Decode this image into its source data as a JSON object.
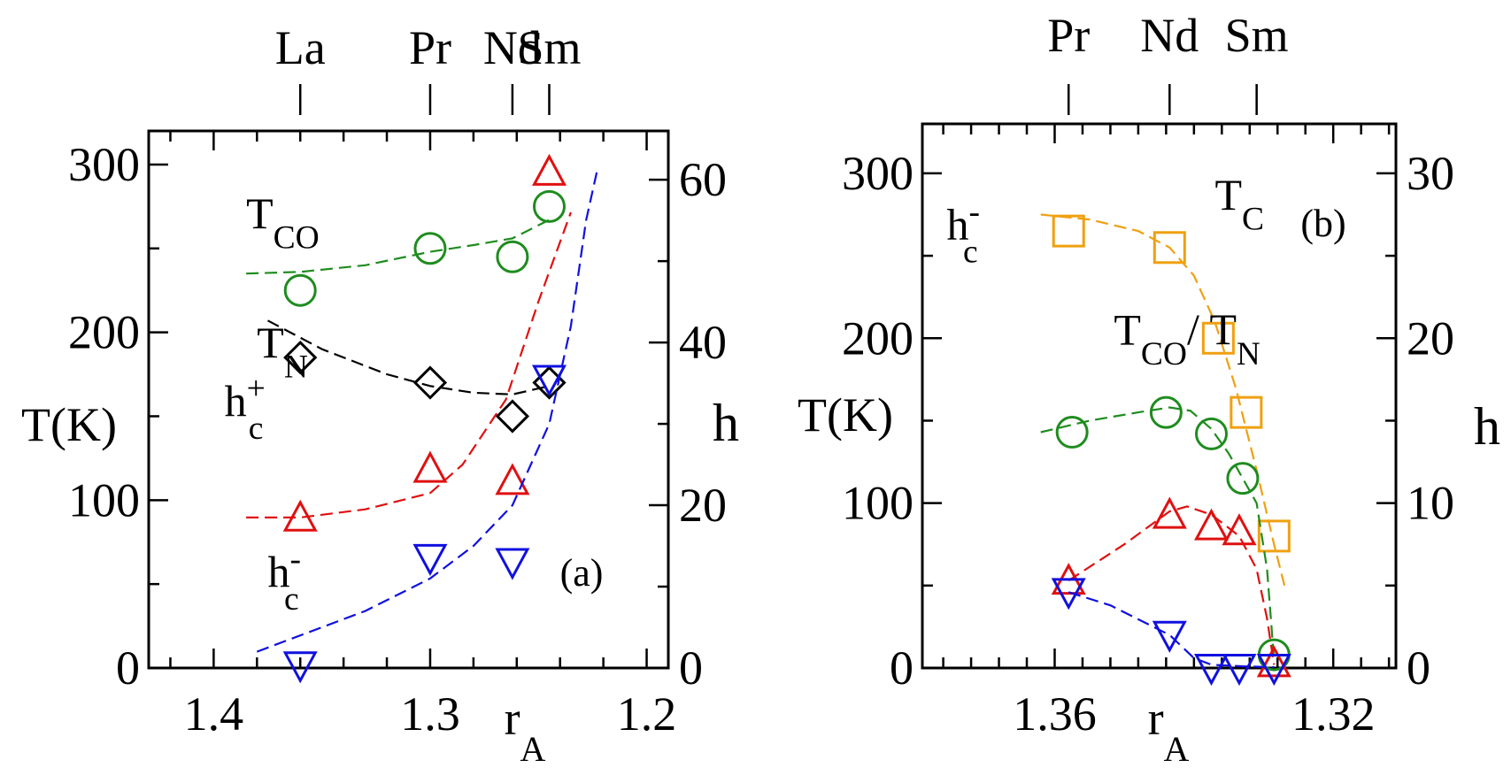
{
  "chart_data": [
    {
      "type": "scatter",
      "panel_label": "(a)",
      "xlabel": "r",
      "xlabel_sub": "A",
      "ylabel_left": "T(K)",
      "ylabel_right": "h",
      "x_range": [
        1.43,
        1.19
      ],
      "ylim_left": [
        0,
        320
      ],
      "ylim_right": [
        0,
        66
      ],
      "x_ticks": [
        1.4,
        1.3,
        1.2
      ],
      "x_tick_labels": [
        "1.4",
        "1.3",
        "1.2"
      ],
      "x_minor_ticks": [
        1.42,
        1.38,
        1.36,
        1.34,
        1.32,
        1.28,
        1.26,
        1.24,
        1.22
      ],
      "y_left_ticks": [
        0,
        100,
        200,
        300
      ],
      "y_left_tick_labels": [
        "0",
        "100",
        "200",
        "300"
      ],
      "y_left_minor_ticks": [
        50,
        150,
        250
      ],
      "y_right_ticks": [
        0,
        20,
        40,
        60
      ],
      "y_right_tick_labels": [
        "0",
        "20",
        "40",
        "60"
      ],
      "y_right_minor_ticks": [
        10,
        30,
        50
      ],
      "top_axis": [
        {
          "label": "La",
          "x": 1.36
        },
        {
          "label": "Pr",
          "x": 1.3
        },
        {
          "label": "Nd",
          "x": 1.262
        },
        {
          "label": "Sm",
          "x": 1.245
        }
      ],
      "series": [
        {
          "name": "T",
          "sub": "CO",
          "sup": "",
          "color": "#1e8c1e",
          "marker": "circle",
          "x": [
            1.36,
            1.3,
            1.262,
            1.245
          ],
          "y": [
            225,
            250,
            245,
            275
          ],
          "curve_x": [
            1.385,
            1.36,
            1.33,
            1.3,
            1.28,
            1.262,
            1.245
          ],
          "curve_y": [
            235,
            236,
            240,
            248,
            252,
            256,
            267
          ],
          "label_value": {
            "x": 1.385,
            "y": 262
          }
        },
        {
          "name": "T",
          "sub": "N",
          "sup": "",
          "color": "#000000",
          "marker": "diamond",
          "x": [
            1.36,
            1.3,
            1.262,
            1.245
          ],
          "y": [
            185,
            170,
            150,
            170
          ],
          "curve_x": [
            1.375,
            1.35,
            1.32,
            1.3,
            1.28,
            1.262,
            1.245
          ],
          "curve_y": [
            207,
            190,
            175,
            168,
            164,
            163,
            168
          ],
          "label_value": {
            "x": 1.38,
            "y": 185
          }
        },
        {
          "name": "h",
          "sub": "c",
          "sup": "+",
          "color": "#e01010",
          "marker": "triangle-up",
          "x": [
            1.36,
            1.3,
            1.262,
            1.245
          ],
          "y": [
            18.5,
            24.5,
            23,
            61
          ],
          "curve_x": [
            1.385,
            1.36,
            1.33,
            1.3,
            1.285,
            1.265,
            1.25,
            1.235
          ],
          "curve_y": [
            18.5,
            18.5,
            19.5,
            21.5,
            25,
            33,
            45,
            56
          ],
          "label_value": {
            "x": 1.395,
            "y": 31
          }
        },
        {
          "name": "h",
          "sub": "c",
          "sup": "-",
          "color": "#1010e0",
          "marker": "triangle-down",
          "x": [
            1.36,
            1.3,
            1.262,
            1.245
          ],
          "y": [
            0.3,
            13.5,
            13,
            35.5
          ],
          "curve_x": [
            1.38,
            1.35,
            1.33,
            1.3,
            1.28,
            1.262,
            1.245,
            1.235,
            1.228,
            1.223
          ],
          "curve_y": [
            2,
            5,
            7,
            11,
            15,
            20,
            30,
            42,
            55,
            61
          ],
          "label_value": {
            "x": 1.375,
            "y": 10
          }
        }
      ]
    },
    {
      "type": "scatter",
      "panel_label": "(b)",
      "xlabel": "r",
      "xlabel_sub": "A",
      "ylabel_left": "T(K)",
      "ylabel_right": "h",
      "x_range": [
        1.379,
        1.311
      ],
      "ylim_left": [
        0,
        330
      ],
      "ylim_right": [
        0,
        33
      ],
      "x_ticks": [
        1.36,
        1.32
      ],
      "x_tick_labels": [
        "1.36",
        "1.32"
      ],
      "x_minor_ticks": [
        1.376,
        1.372,
        1.368,
        1.364,
        1.356,
        1.352,
        1.348,
        1.344,
        1.34,
        1.336,
        1.332,
        1.328,
        1.324,
        1.316,
        1.312
      ],
      "y_left_ticks": [
        0,
        100,
        200,
        300
      ],
      "y_left_tick_labels": [
        "0",
        "100",
        "200",
        "300"
      ],
      "y_left_minor_ticks": [
        50,
        150,
        250
      ],
      "y_right_ticks": [
        0,
        10,
        20,
        30
      ],
      "y_right_tick_labels": [
        "0",
        "10",
        "20",
        "30"
      ],
      "y_right_minor_ticks": [
        5,
        15,
        25
      ],
      "top_axis": [
        {
          "label": "Pr",
          "x": 1.358
        },
        {
          "label": "Nd",
          "x": 1.3435
        },
        {
          "label": "Sm",
          "x": 1.331
        }
      ],
      "series": [
        {
          "name": "T",
          "sub": "C",
          "sup": "",
          "color": "#f0a010",
          "marker": "square",
          "x": [
            1.358,
            1.3435,
            1.3365,
            1.3325,
            1.3285
          ],
          "y": [
            265,
            255,
            200,
            155,
            80
          ],
          "curve_x": [
            1.362,
            1.355,
            1.348,
            1.3435,
            1.34,
            1.337,
            1.334,
            1.331,
            1.3285,
            1.327
          ],
          "curve_y": [
            275,
            272,
            265,
            255,
            238,
            210,
            170,
            120,
            75,
            50
          ],
          "label_value": {
            "x": 1.337,
            "y": 278
          }
        },
        {
          "name": "T",
          "sub": "CO",
          "sup": "",
          "color": "#1e8c1e",
          "marker": "circle",
          "x": [
            1.3575,
            1.344,
            1.3375,
            1.333,
            1.3285
          ],
          "y": [
            143,
            155,
            142,
            115,
            8
          ],
          "curve_x": [
            1.362,
            1.355,
            1.348,
            1.3435,
            1.3405,
            1.3375,
            1.335,
            1.331,
            1.3295,
            1.3285
          ],
          "curve_y": [
            143,
            150,
            155,
            158,
            156,
            145,
            130,
            100,
            60,
            5
          ],
          "label_value": {
            "x": 1.3515,
            "y": 196
          }
        },
        {
          "name": "h",
          "sub": "c",
          "sup": "+",
          "color": "#e01010",
          "marker": "triangle-up",
          "x": [
            1.358,
            1.3435,
            1.3375,
            1.3335,
            1.3285
          ],
          "y": [
            5.3,
            9.3,
            8.6,
            8.3,
            0.3
          ],
          "curve_x": [
            1.358,
            1.35,
            1.3435,
            1.341,
            1.3375,
            1.3335,
            1.331,
            1.3295,
            1.3285
          ],
          "curve_y": [
            5.3,
            7.5,
            9.5,
            9.8,
            9.3,
            8.0,
            6.0,
            3.0,
            0.2
          ],
          "label_value": {
            "x": 1.3755,
            "y": 82
          }
        },
        {
          "name": "h",
          "sub": "c",
          "sup": "-",
          "color": "#1010e0",
          "marker": "triangle-down",
          "x": [
            1.358,
            1.3435,
            1.3375,
            1.3335,
            1.3285
          ],
          "y": [
            4.6,
            2.0,
            0,
            0,
            0
          ],
          "curve_x": [
            1.358,
            1.352,
            1.3435,
            1.34,
            1.3375,
            1.333,
            1.3285
          ],
          "curve_y": [
            4.6,
            3.8,
            2.0,
            0.6,
            0.2,
            0.1,
            0.05
          ],
          "label_value": {
            "x": 1.3755,
            "y": 26
          }
        }
      ]
    }
  ]
}
